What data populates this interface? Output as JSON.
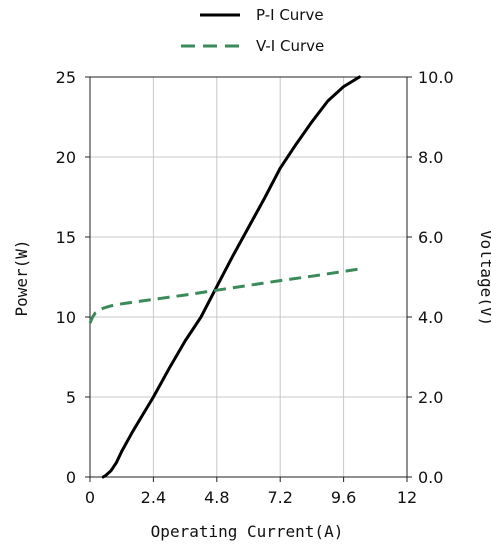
{
  "chart_data": {
    "type": "line",
    "xlabel": "Operating Current(A)",
    "ylabel_left": "Power(W)",
    "ylabel_right": "Voltage(V)",
    "xlim": [
      0,
      12
    ],
    "ylim_left": [
      0,
      25
    ],
    "ylim_right": [
      0,
      10
    ],
    "x_ticks": [
      "0",
      "2.4",
      "4.8",
      "7.2",
      "9.6",
      "12"
    ],
    "y_left_ticks": [
      "0",
      "5",
      "10",
      "15",
      "20",
      "25"
    ],
    "y_right_ticks": [
      "0.0",
      "2.0",
      "4.0",
      "6.0",
      "8.0",
      "10.0"
    ],
    "grid": true,
    "legend_position": "top",
    "series": [
      {
        "name": "P-I Curve",
        "axis": "left",
        "color": "#000000",
        "style": "solid",
        "x": [
          0.5,
          0.6,
          0.8,
          1.0,
          1.2,
          1.6,
          2.0,
          2.4,
          3.0,
          3.6,
          4.2,
          4.8,
          5.4,
          6.0,
          6.6,
          7.2,
          7.8,
          8.4,
          9.0,
          9.6,
          10.2
        ],
        "y": [
          0.0,
          0.1,
          0.4,
          0.9,
          1.6,
          2.8,
          3.9,
          5.0,
          6.8,
          8.5,
          10.0,
          11.9,
          13.8,
          15.6,
          17.4,
          19.3,
          20.8,
          22.2,
          23.5,
          24.4,
          25.0
        ]
      },
      {
        "name": "V-I Curve",
        "axis": "right",
        "color": "#3a8a5a",
        "style": "dashed",
        "x": [
          0.0,
          0.1,
          0.2,
          0.35,
          0.5,
          0.8,
          1.2,
          2.4,
          3.6,
          4.8,
          6.0,
          7.2,
          8.4,
          9.6,
          10.2
        ],
        "y": [
          3.85,
          4.0,
          4.1,
          4.17,
          4.22,
          4.28,
          4.33,
          4.44,
          4.55,
          4.67,
          4.79,
          4.91,
          5.02,
          5.14,
          5.2
        ]
      }
    ]
  }
}
